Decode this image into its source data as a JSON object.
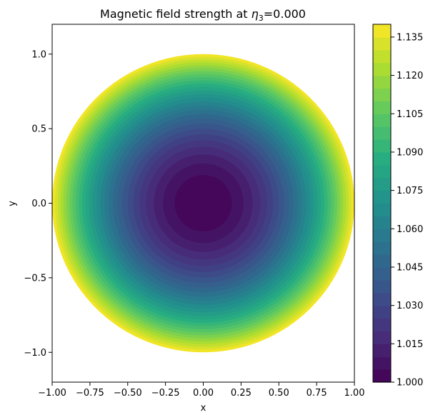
{
  "chart_data": {
    "type": "heatmap",
    "subtype": "filled-contour",
    "title_main": "Magnetic field strength at ",
    "title_symbol": "η",
    "title_subscript": "3",
    "title_value": "=0.000",
    "xlabel": "x",
    "ylabel": "y",
    "xlim": [
      -1.0,
      1.0
    ],
    "ylim": [
      -1.2,
      1.2
    ],
    "x_ticks": [
      "−1.00",
      "−0.75",
      "−0.50",
      "−0.25",
      "0.00",
      "0.25",
      "0.50",
      "0.75",
      "1.00"
    ],
    "x_tick_values": [
      -1.0,
      -0.75,
      -0.5,
      -0.25,
      0.0,
      0.25,
      0.5,
      0.75,
      1.0
    ],
    "y_ticks": [
      "−1.0",
      "−0.5",
      "0.0",
      "0.5",
      "1.0"
    ],
    "y_tick_values": [
      -1.0,
      -0.5,
      0.0,
      0.5,
      1.0
    ],
    "domain": "unit disk (r ≤ 1)",
    "field": "B ≈ 1.0 + 0.14·r² (minimum at center, maximum at edge)",
    "center_value": 1.0,
    "edge_value": 1.14,
    "colormap": "viridis",
    "colorbar": {
      "min": 1.0,
      "max": 1.14,
      "levels": 28,
      "ticks": [
        "1.000",
        "1.015",
        "1.030",
        "1.045",
        "1.060",
        "1.075",
        "1.090",
        "1.105",
        "1.120",
        "1.135"
      ],
      "tick_values": [
        1.0,
        1.015,
        1.03,
        1.045,
        1.06,
        1.075,
        1.09,
        1.105,
        1.12,
        1.135
      ]
    }
  }
}
